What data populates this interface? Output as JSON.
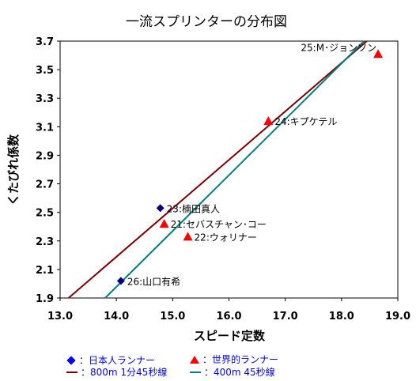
{
  "chart_data": {
    "type": "scatter",
    "title": "一流スプリンターの分布図",
    "xlabel": "スピード定数",
    "ylabel": "くたびれ係数",
    "xlim": [
      13.0,
      19.0
    ],
    "ylim": [
      1.9,
      3.7
    ],
    "xticks": [
      "13.0",
      "14.0",
      "15.0",
      "16.0",
      "17.0",
      "18.0",
      "19.0"
    ],
    "yticks": [
      "1.9",
      "2.1",
      "2.3",
      "2.5",
      "2.7",
      "2.9",
      "3.1",
      "3.3",
      "3.5",
      "3.7"
    ],
    "grid": false,
    "series": [
      {
        "name": "：日本人ランナー",
        "marker": "diamond",
        "color": "#000080",
        "points": [
          {
            "x": 14.78,
            "y": 2.53,
            "label": "23:楠田真人"
          },
          {
            "x": 14.08,
            "y": 2.02,
            "label": "26:山口有希"
          }
        ]
      },
      {
        "name": "：世界的ランナー",
        "marker": "triangle",
        "color": "#FF0000",
        "points": [
          {
            "x": 18.65,
            "y": 3.61,
            "label": "25:M･ジョンソン"
          },
          {
            "x": 16.7,
            "y": 3.14,
            "label": "24:キプケテル"
          },
          {
            "x": 14.85,
            "y": 2.42,
            "label": "21:セバスチャン･コー"
          },
          {
            "x": 15.27,
            "y": 2.33,
            "label": "22:ウォリナー"
          }
        ]
      }
    ],
    "lines": [
      {
        "name": "：800m 1分45秒線",
        "color": "#800000",
        "from": [
          13.15,
          1.9
        ],
        "to": [
          18.45,
          3.7
        ]
      },
      {
        "name": "：400m 45秒線",
        "color": "#008080",
        "from": [
          13.8,
          1.9
        ],
        "to": [
          18.4,
          3.7
        ]
      }
    ],
    "legend_position": "bottom"
  }
}
